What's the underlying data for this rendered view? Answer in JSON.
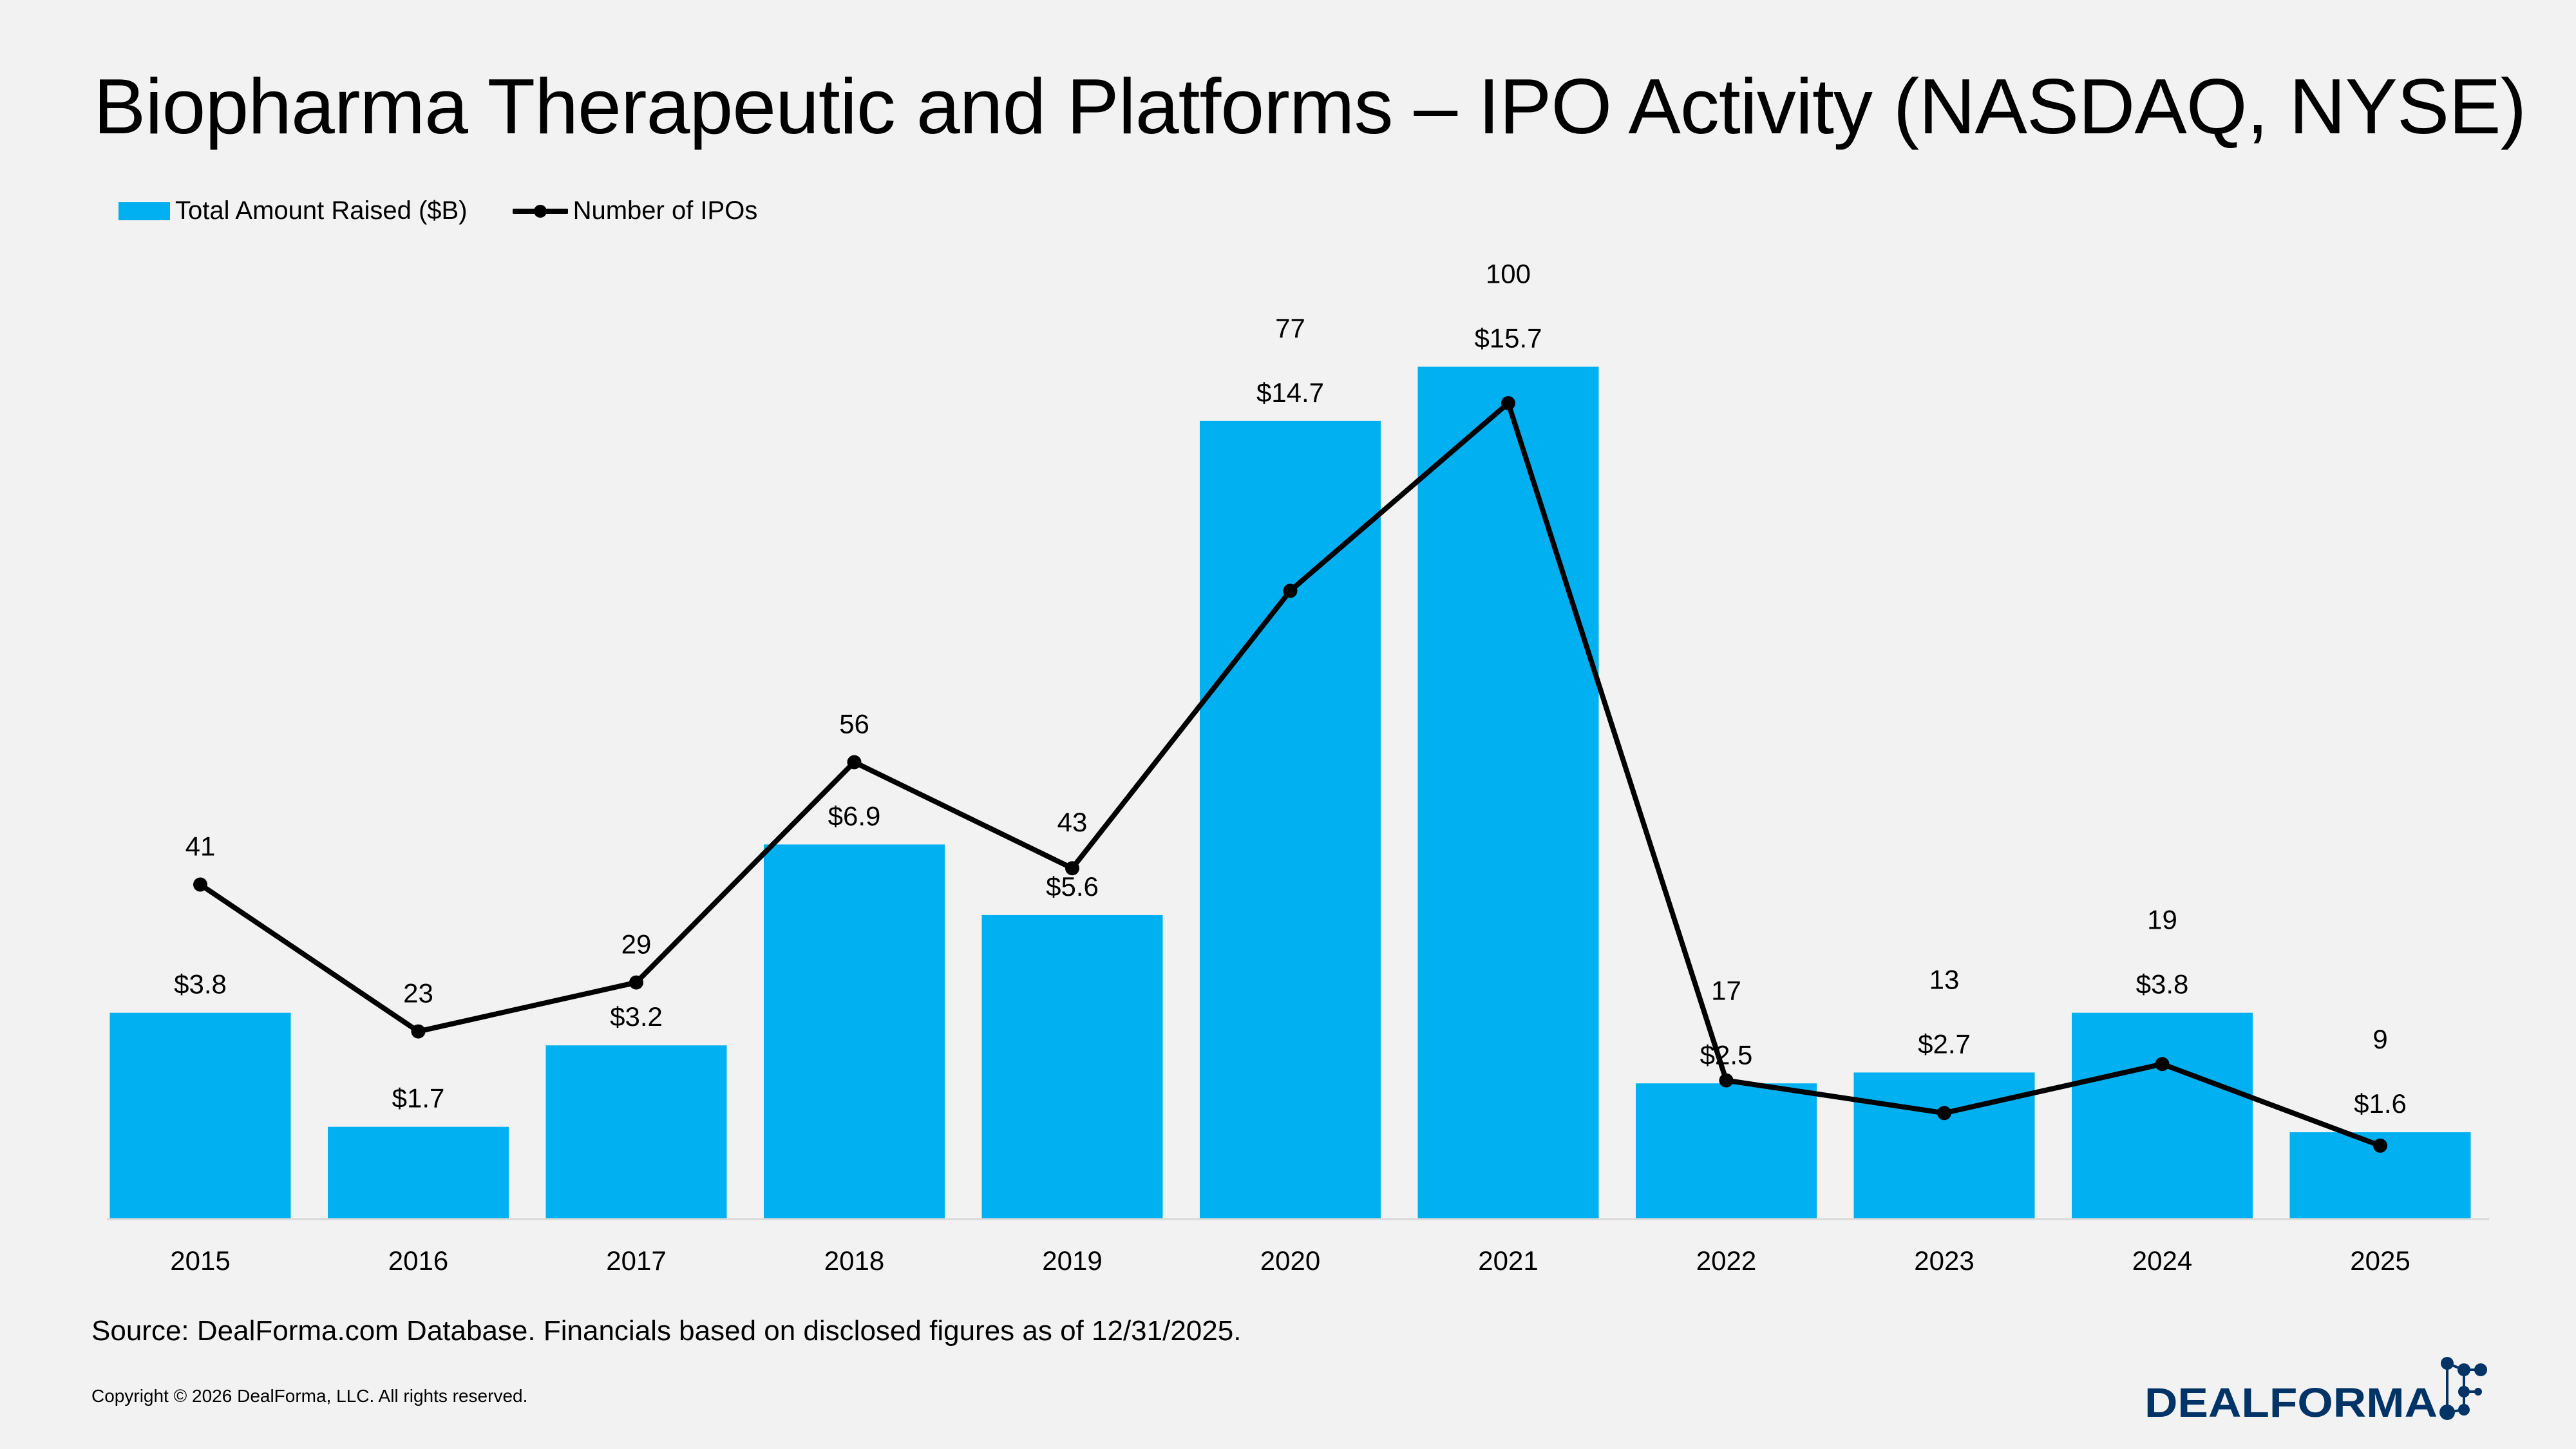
{
  "title": "Biopharma Therapeutic and Platforms – IPO Activity (NASDAQ, NYSE)",
  "source": "Source: DealForma.com Database. Financials based on disclosed figures as of 12/31/2025.",
  "copyright": "Copyright © 2026 DealForma, LLC. All rights reserved.",
  "logo_text": "DealForma",
  "colors": {
    "bar": "#00B0F0",
    "line": "#000000",
    "background": "#F2F2F2",
    "logo": "#003366"
  },
  "chart_data": {
    "type": "bar+line",
    "categories": [
      "2015",
      "2016",
      "2017",
      "2018",
      "2019",
      "2020",
      "2021",
      "2022",
      "2023",
      "2024",
      "2025"
    ],
    "series": [
      {
        "name": "Total Amount Raised ($B)",
        "type": "bar",
        "axis": "primary",
        "values": [
          3.8,
          1.7,
          3.2,
          6.9,
          5.6,
          14.7,
          15.7,
          2.5,
          2.7,
          3.8,
          1.6
        ],
        "labels": [
          "$3.8",
          "$1.7",
          "$3.2",
          "$6.9",
          "$5.6",
          "$14.7",
          "$15.7",
          "$2.5",
          "$2.7",
          "$3.8",
          "$1.6"
        ]
      },
      {
        "name": "Number of IPOs",
        "type": "line",
        "axis": "secondary",
        "values": [
          41,
          23,
          29,
          56,
          43,
          77,
          100,
          17,
          13,
          19,
          9
        ],
        "labels": [
          "41",
          "23",
          "29",
          "56",
          "43",
          "77",
          "100",
          "17",
          "13",
          "19",
          "9"
        ]
      }
    ],
    "legend": "top-left",
    "grid": false,
    "yaxis_visible": false
  }
}
